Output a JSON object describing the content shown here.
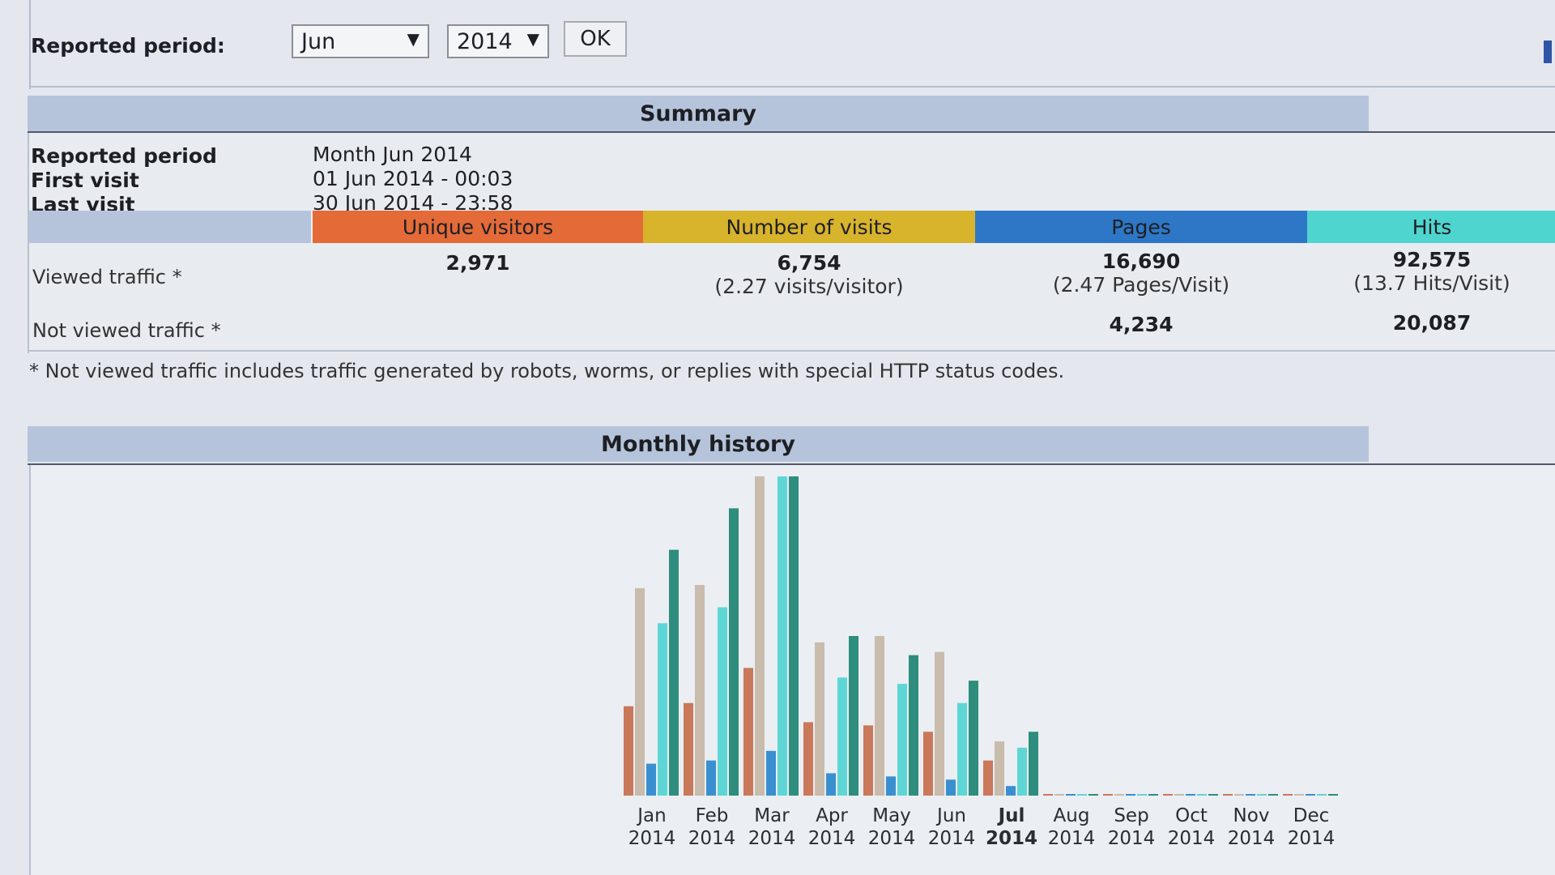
{
  "period": {
    "label": "Reported period:",
    "month": "Jun",
    "year": "2014",
    "ok": "OK",
    "arrow_icon": "▼"
  },
  "summary": {
    "title": "Summary",
    "info": [
      {
        "label": "Reported period",
        "value": "Month Jun 2014"
      },
      {
        "label": "First visit",
        "value": "01 Jun 2014 - 00:03"
      },
      {
        "label": "Last visit",
        "value": "30 Jun 2014 - 23:58"
      }
    ],
    "columns": {
      "visitors": "Unique visitors",
      "visits": "Number of visits",
      "pages": "Pages",
      "hits": "Hits"
    },
    "viewed": {
      "label": "Viewed traffic *",
      "visitors": "2,971",
      "visits": "6,754",
      "visits_sub": "(2.27 visits/visitor)",
      "pages": "16,690",
      "pages_sub": "(2.47 Pages/Visit)",
      "hits": "92,575",
      "hits_sub": "(13.7 Hits/Visit)"
    },
    "not_viewed": {
      "label": "Not viewed traffic *",
      "pages": "4,234",
      "hits": "20,087"
    },
    "footnote": "* Not viewed traffic includes traffic generated by robots, worms, or replies with special HTTP status codes."
  },
  "history": {
    "title": "Monthly history"
  },
  "colors": {
    "visitors": "#c9785a",
    "visits": "#c9bcad",
    "pages": "#3a8fd0",
    "hits": "#5fd6d6",
    "bandwidth": "#2e8d7c"
  },
  "chart_data": {
    "type": "bar",
    "categories": [
      "Jan 2014",
      "Feb 2014",
      "Mar 2014",
      "Apr 2014",
      "May 2014",
      "Jun 2014",
      "Jul 2014",
      "Aug 2014",
      "Sep 2014",
      "Oct 2014",
      "Nov 2014",
      "Dec 2014"
    ],
    "month_labels": [
      "Jan",
      "Feb",
      "Mar",
      "Apr",
      "May",
      "Jun",
      "Jul",
      "Aug",
      "Sep",
      "Oct",
      "Nov",
      "Dec"
    ],
    "year_label": "2014",
    "highlight": "Jul 2014",
    "y_unit": "relative bar height (no axis printed)",
    "series": [
      {
        "values": [
          0.28,
          0.29,
          0.4,
          0.23,
          0.22,
          0.2,
          0.11,
          0,
          0,
          0,
          0,
          0
        ]
      },
      {
        "values": [
          0.65,
          0.66,
          1.0,
          0.48,
          0.5,
          0.45,
          0.17,
          0,
          0,
          0,
          0,
          0
        ]
      },
      {
        "values": [
          0.1,
          0.11,
          0.14,
          0.07,
          0.06,
          0.05,
          0.03,
          0,
          0,
          0,
          0,
          0
        ]
      },
      {
        "values": [
          0.54,
          0.59,
          1.0,
          0.37,
          0.35,
          0.29,
          0.15,
          0,
          0,
          0,
          0,
          0
        ]
      },
      {
        "values": [
          0.77,
          0.9,
          1.0,
          0.5,
          0.44,
          0.36,
          0.2,
          0,
          0,
          0,
          0,
          0
        ]
      }
    ]
  }
}
